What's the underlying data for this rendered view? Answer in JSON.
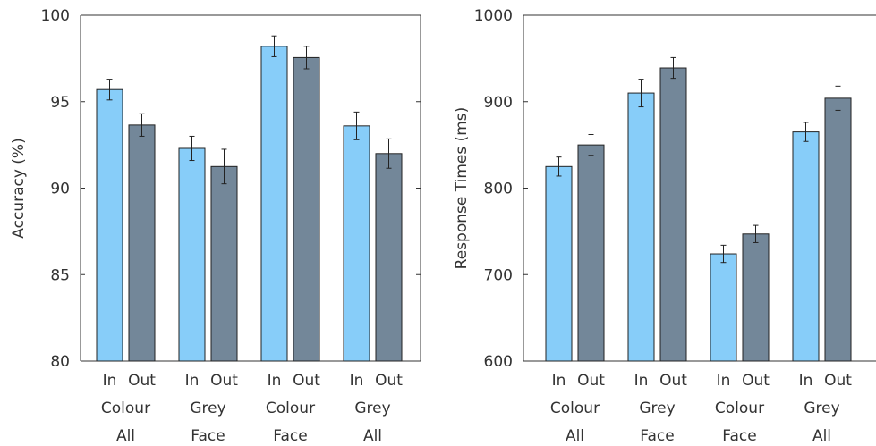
{
  "chart_data": [
    {
      "type": "bar",
      "title": "",
      "xlabel": "",
      "ylabel": "Accuracy (%)",
      "ylim": [
        80,
        100
      ],
      "yticks": [
        "80",
        "85",
        "90",
        "95",
        "100"
      ],
      "groups": [
        {
          "bars": [
            "In",
            "Out"
          ],
          "line1": "Colour",
          "line2": "All"
        },
        {
          "bars": [
            "In",
            "Out"
          ],
          "line1": "Grey",
          "line2": "Face"
        },
        {
          "bars": [
            "In",
            "Out"
          ],
          "line1": "Colour",
          "line2": "Face"
        },
        {
          "bars": [
            "In",
            "Out"
          ],
          "line1": "Grey",
          "line2": "All"
        }
      ],
      "series": [
        {
          "values": [
            95.7,
            92.3,
            98.2,
            93.6
          ],
          "errors": [
            0.6,
            0.7,
            0.6,
            0.8
          ],
          "color": "#87CDF9"
        },
        {
          "values": [
            93.65,
            91.25,
            97.55,
            92.0
          ],
          "errors": [
            0.65,
            1.0,
            0.65,
            0.85
          ],
          "color": "#738799"
        }
      ],
      "grid": false
    },
    {
      "type": "bar",
      "title": "",
      "xlabel": "",
      "ylabel": "Response Times (ms)",
      "ylim": [
        600,
        1000
      ],
      "yticks": [
        "600",
        "700",
        "800",
        "900",
        "1000"
      ],
      "groups": [
        {
          "bars": [
            "In",
            "Out"
          ],
          "line1": "Colour",
          "line2": "All"
        },
        {
          "bars": [
            "In",
            "Out"
          ],
          "line1": "Grey",
          "line2": "Face"
        },
        {
          "bars": [
            "In",
            "Out"
          ],
          "line1": "Colour",
          "line2": "Face"
        },
        {
          "bars": [
            "In",
            "Out"
          ],
          "line1": "Grey",
          "line2": "All"
        }
      ],
      "series": [
        {
          "values": [
            825,
            910,
            724,
            865
          ],
          "errors": [
            11,
            16,
            10,
            11
          ],
          "color": "#87CDF9"
        },
        {
          "values": [
            850,
            939,
            747,
            904
          ],
          "errors": [
            12,
            12,
            10,
            14
          ],
          "color": "#738799"
        }
      ],
      "grid": false
    }
  ]
}
